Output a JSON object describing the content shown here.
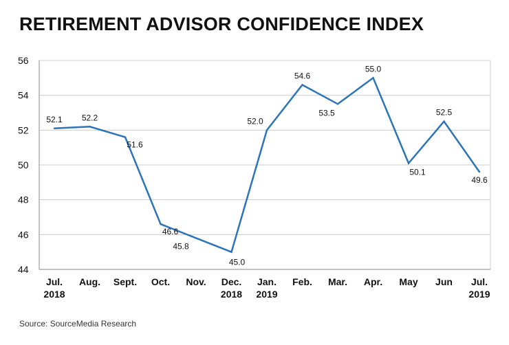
{
  "title": "RETIREMENT ADVISOR CONFIDENCE INDEX",
  "source": "Source: SourceMedia Research",
  "colors": {
    "line": "#2b74b8",
    "grid": "#cccccc",
    "text": "#111111"
  },
  "chart_data": {
    "type": "line",
    "title": "RETIREMENT ADVISOR CONFIDENCE INDEX",
    "xlabel": "",
    "ylabel": "",
    "ylim": [
      44,
      56
    ],
    "yticks": [
      44,
      46,
      48,
      50,
      52,
      54,
      56
    ],
    "grid": true,
    "categories": [
      [
        "Jul.",
        "2018"
      ],
      [
        "Aug."
      ],
      [
        "Sept."
      ],
      [
        "Oct."
      ],
      [
        "Nov."
      ],
      [
        "Dec.",
        "2018"
      ],
      [
        "Jan.",
        "2019"
      ],
      [
        "Feb."
      ],
      [
        "Mar."
      ],
      [
        "Apr."
      ],
      [
        "May"
      ],
      [
        "Jun"
      ],
      [
        "Jul.",
        "2019"
      ]
    ],
    "values": [
      52.1,
      52.2,
      51.6,
      46.6,
      45.8,
      45.0,
      52.0,
      54.6,
      53.5,
      55.0,
      50.1,
      52.5,
      49.6
    ],
    "data_labels": [
      "52.1",
      "52.2",
      "51.6",
      "46.6",
      "45.8",
      "45.0",
      "52.0",
      "54.6",
      "53.5",
      "55.0",
      "50.1",
      "52.5",
      "49.6"
    ]
  }
}
